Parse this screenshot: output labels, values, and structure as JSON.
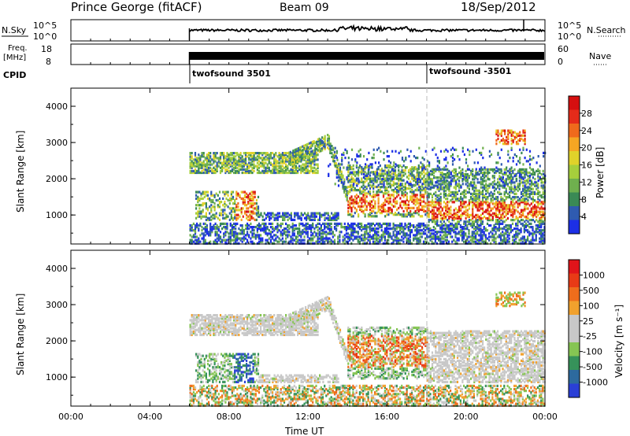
{
  "header": {
    "station": "Prince George (fitACF)",
    "beam": "Beam 09",
    "date": "18/Sep/2012"
  },
  "top_panels": {
    "nsky_label": "N.Sky",
    "nsky_ticks": [
      "10^5",
      "10^0"
    ],
    "nsearch_label": "N.Search",
    "nsearch_ticks": [
      "10^5",
      "10^0"
    ],
    "freq_label": "Freq.",
    "freq_unit": "[MHz]",
    "freq_ticks": [
      "18",
      "8"
    ],
    "nave_label": "Nave",
    "nave_ticks": [
      "60",
      "0"
    ],
    "cpid_label": "CPID",
    "cpid_segments": [
      {
        "label": "twofsound 3501",
        "start_hour": 6.0
      },
      {
        "label": "twofsound -3501",
        "start_hour": 18.0
      }
    ]
  },
  "chart_data": [
    {
      "type": "heatmap",
      "title": "Power",
      "ylabel": "Slant Range [km]",
      "ylim": [
        200,
        4500
      ],
      "yticks": [
        "1000",
        "2000",
        "3000",
        "4000"
      ],
      "xlim_hours": [
        0,
        24
      ],
      "colorbar_label": "Power [dB]",
      "colorbar_ticks": [
        "28",
        "24",
        "20",
        "16",
        "12",
        "8",
        "4"
      ],
      "colorbar_colors": [
        "#1c2fe6",
        "#2f5bb0",
        "#3a8a55",
        "#6fb04e",
        "#a6cf3c",
        "#e0d22a",
        "#f5a623",
        "#ef6a1c",
        "#e52b1a",
        "#d60f10"
      ],
      "data_start_hour": 6.0
    },
    {
      "type": "heatmap",
      "title": "Velocity",
      "ylabel": "Slant Range [km]",
      "ylim": [
        200,
        4500
      ],
      "yticks": [
        "1000",
        "2000",
        "3000",
        "4000"
      ],
      "xlabel": "Time UT",
      "xticks": [
        "00:00",
        "04:00",
        "08:00",
        "12:00",
        "16:00",
        "20:00",
        "00:00"
      ],
      "xlim_hours": [
        0,
        24
      ],
      "colorbar_label": "Velocity [m s⁻¹]",
      "colorbar_ticks": [
        "1000",
        "500",
        "100",
        "25",
        "-25",
        "-100",
        "-500",
        "-1000"
      ],
      "colorbar_colors": [
        "#2a3fd6",
        "#2d6a9e",
        "#36925a",
        "#86c553",
        "#c8c8c8",
        "#c8c8c8",
        "#f1a12d",
        "#ef6d1c",
        "#e83a16",
        "#e0141a"
      ],
      "data_start_hour": 6.0
    }
  ],
  "colors": {
    "gray": "#c8c8c8",
    "axis": "#000000"
  }
}
